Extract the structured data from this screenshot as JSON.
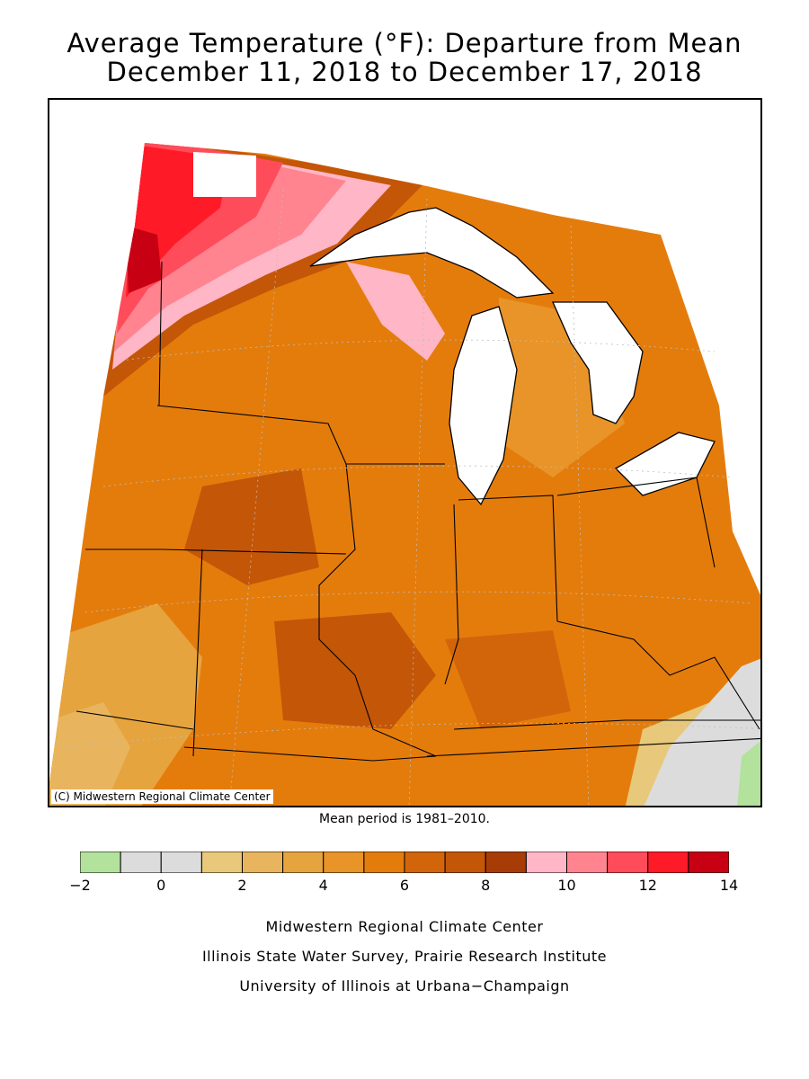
{
  "title": {
    "line1": "Average Temperature (°F): Departure from Mean",
    "line2": "December 11, 2018 to December 17, 2018"
  },
  "map": {
    "copyright": "(C) Midwestern Regional Climate Center",
    "mean_period": "Mean period is 1981–2010."
  },
  "legend": {
    "colors": [
      "#b2e29b",
      "#dcdcdc",
      "#dcdcdc",
      "#e8c87a",
      "#e8b45e",
      "#e6a43e",
      "#e89428",
      "#e47c0c",
      "#d2650a",
      "#c45608",
      "#a83c06",
      "#ffb6c6",
      "#ff8490",
      "#ff4c5a",
      "#ff1a28",
      "#c80014"
    ],
    "tick_labels": [
      "−2",
      "0",
      "2",
      "4",
      "6",
      "8",
      "10",
      "12",
      "14"
    ]
  },
  "footer": {
    "line1": "Midwestern Regional Climate Center",
    "line2": "Illinois State Water Survey, Prairie Research Institute",
    "line3": "University of Illinois at Urbana−Champaign"
  }
}
